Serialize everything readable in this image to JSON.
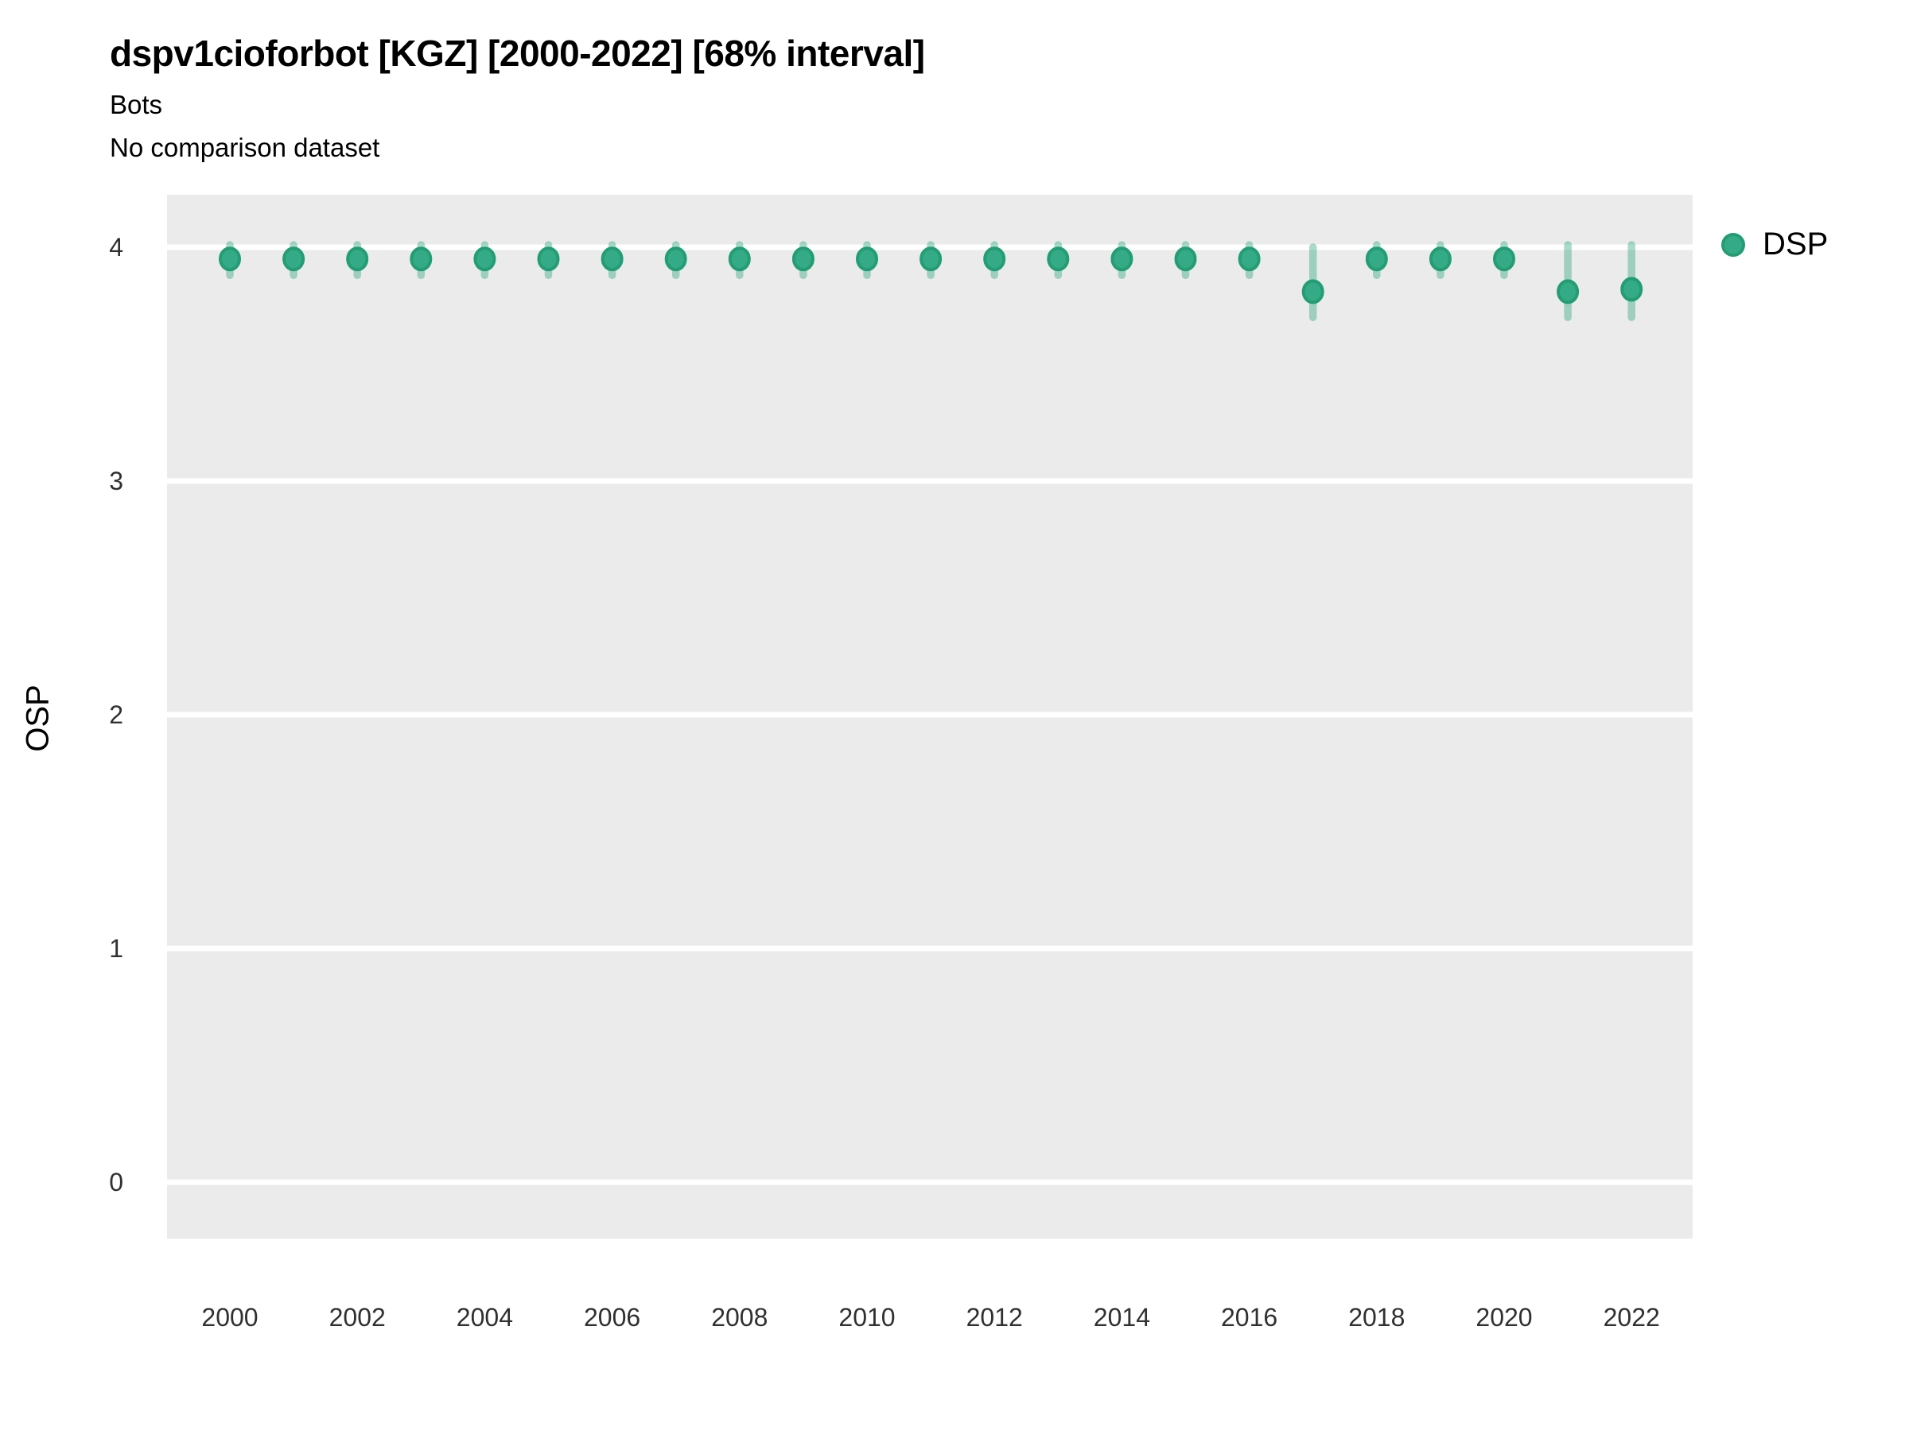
{
  "header": {
    "title": "dspv1cioforbot [KGZ] [2000-2022] [68% interval]",
    "subtitle": "Bots",
    "note": "No comparison dataset"
  },
  "chart_data": {
    "type": "scatter",
    "variant": "pointrange-with-68pct-interval",
    "title": "dspv1cioforbot [KGZ] [2000-2022] [68% interval]",
    "subtitle": "Bots",
    "note": "No comparison dataset",
    "xlabel": "",
    "ylabel": "OSP",
    "legend_position": "right-top",
    "grid": "horizontal-major-only",
    "x_ticks": [
      2000,
      2002,
      2004,
      2006,
      2008,
      2010,
      2012,
      2014,
      2016,
      2018,
      2020,
      2022
    ],
    "y_ticks": [
      0,
      1,
      2,
      3,
      4
    ],
    "xlim": [
      1999,
      2023
    ],
    "ylim": [
      -0.25,
      4.22
    ],
    "series": [
      {
        "name": "DSP",
        "points": [
          {
            "x": 2000,
            "y": 3.95,
            "lo": 3.88,
            "hi": 4.01
          },
          {
            "x": 2001,
            "y": 3.95,
            "lo": 3.88,
            "hi": 4.01
          },
          {
            "x": 2002,
            "y": 3.95,
            "lo": 3.88,
            "hi": 4.01
          },
          {
            "x": 2003,
            "y": 3.95,
            "lo": 3.88,
            "hi": 4.01
          },
          {
            "x": 2004,
            "y": 3.95,
            "lo": 3.88,
            "hi": 4.01
          },
          {
            "x": 2005,
            "y": 3.95,
            "lo": 3.88,
            "hi": 4.01
          },
          {
            "x": 2006,
            "y": 3.95,
            "lo": 3.88,
            "hi": 4.01
          },
          {
            "x": 2007,
            "y": 3.95,
            "lo": 3.88,
            "hi": 4.01
          },
          {
            "x": 2008,
            "y": 3.95,
            "lo": 3.88,
            "hi": 4.01
          },
          {
            "x": 2009,
            "y": 3.95,
            "lo": 3.88,
            "hi": 4.01
          },
          {
            "x": 2010,
            "y": 3.95,
            "lo": 3.88,
            "hi": 4.01
          },
          {
            "x": 2011,
            "y": 3.95,
            "lo": 3.88,
            "hi": 4.01
          },
          {
            "x": 2012,
            "y": 3.95,
            "lo": 3.88,
            "hi": 4.01
          },
          {
            "x": 2013,
            "y": 3.95,
            "lo": 3.88,
            "hi": 4.01
          },
          {
            "x": 2014,
            "y": 3.95,
            "lo": 3.88,
            "hi": 4.01
          },
          {
            "x": 2015,
            "y": 3.95,
            "lo": 3.88,
            "hi": 4.01
          },
          {
            "x": 2016,
            "y": 3.95,
            "lo": 3.88,
            "hi": 4.01
          },
          {
            "x": 2017,
            "y": 3.81,
            "lo": 3.7,
            "hi": 4.0
          },
          {
            "x": 2018,
            "y": 3.95,
            "lo": 3.88,
            "hi": 4.01
          },
          {
            "x": 2019,
            "y": 3.95,
            "lo": 3.88,
            "hi": 4.01
          },
          {
            "x": 2020,
            "y": 3.95,
            "lo": 3.88,
            "hi": 4.01
          },
          {
            "x": 2021,
            "y": 3.81,
            "lo": 3.7,
            "hi": 4.01
          },
          {
            "x": 2022,
            "y": 3.82,
            "lo": 3.7,
            "hi": 4.01
          }
        ]
      }
    ],
    "legend": [
      {
        "label": "DSP",
        "color": "#34AB86"
      }
    ]
  },
  "style": {
    "panel_bg": "#EBEBEB",
    "gridline": "#FFFFFF",
    "point_fill": "#34AB86",
    "point_stroke": "#239D74",
    "interval_bar": "#31A884",
    "interval_bar_opacity": "0.42",
    "tick_label_color": "#303030",
    "text_color": "#000000"
  }
}
